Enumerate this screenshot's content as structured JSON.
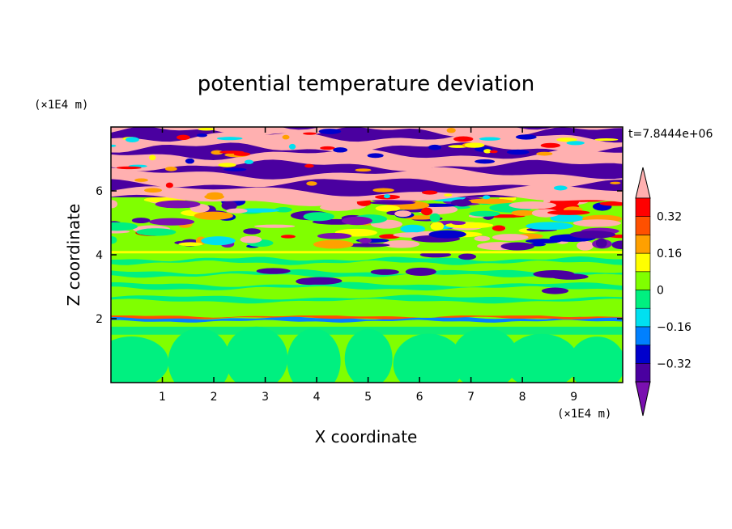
{
  "chart_data": {
    "type": "heatmap",
    "title": "potential temperature deviation",
    "xlabel": "X coordinate",
    "ylabel": "Z coordinate",
    "x_unit": "(×1E4 m)",
    "y_unit": "(×1E4 m)",
    "time_label": "t=7.8444e+06",
    "xlim": [
      0,
      9.95
    ],
    "ylim": [
      0,
      8
    ],
    "x_ticks": [
      1,
      2,
      3,
      4,
      5,
      6,
      7,
      8,
      9
    ],
    "y_ticks": [
      2,
      4,
      6
    ],
    "colorbar": {
      "levels": [
        -0.4,
        -0.32,
        -0.24,
        -0.16,
        -0.08,
        0,
        0.08,
        0.16,
        0.24,
        0.32,
        0.4
      ],
      "tick_labels": [
        "0.32",
        "0.16",
        "0",
        "−0.16",
        "−0.32"
      ],
      "tick_values": [
        0.32,
        0.16,
        0,
        -0.16,
        -0.32
      ],
      "colors": [
        "#7a10b0",
        "#4a00a0",
        "#0000cc",
        "#0080ff",
        "#00e0f0",
        "#00f080",
        "#80ff00",
        "#ffff00",
        "#ffa000",
        "#ff5000",
        "#ff0000",
        "#ffb0b0"
      ]
    },
    "regions": [
      {
        "z_range": [
          0,
          2.0
        ],
        "dominant": [
          "0",
          "0.08"
        ],
        "note": "green/lime convective cells"
      },
      {
        "z_range": [
          2.0,
          4.2
        ],
        "dominant": [
          "0.08"
        ],
        "note": "lime band with scattered purple patches"
      },
      {
        "z_range": [
          4.2,
          5.8
        ],
        "dominant": [
          "-0.4",
          "0.4"
        ],
        "note": "turbulent mixed layer"
      },
      {
        "z_range": [
          5.8,
          8.0
        ],
        "dominant": [
          "-0.4",
          "0.4"
        ],
        "note": "alternating pink and purple layers"
      }
    ]
  }
}
